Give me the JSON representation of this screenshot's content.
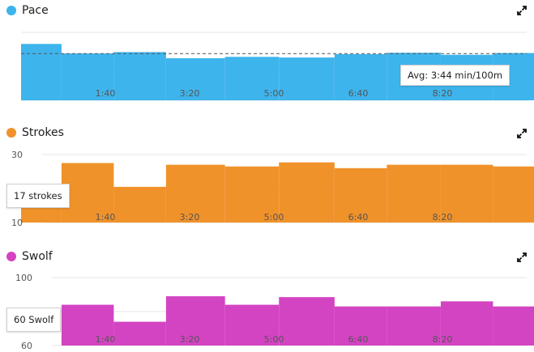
{
  "panels": [
    {
      "id": "pace",
      "title": "Pace",
      "color": "#3eb4ec",
      "callout": "Avg: 3:44 min/100m"
    },
    {
      "id": "strokes",
      "title": "Strokes",
      "color": "#f0922a",
      "callout": "17 strokes"
    },
    {
      "id": "swolf",
      "title": "Swolf",
      "color": "#d344c2",
      "callout": "60 Swolf"
    }
  ],
  "chart_data": [
    {
      "type": "bar",
      "series_name": "Pace",
      "x_tick_labels": [
        "1:40",
        "3:20",
        "5:00",
        "6:40",
        "8:20"
      ],
      "x_tick_values": [
        100,
        200,
        300,
        400,
        500
      ],
      "x_range": [
        0,
        600
      ],
      "segments": [
        {
          "start": 0,
          "end": 48,
          "value": 4.15
        },
        {
          "start": 48,
          "end": 110,
          "value": 3.45
        },
        {
          "start": 110,
          "end": 172,
          "value": 3.55
        },
        {
          "start": 172,
          "end": 242,
          "value": 3.1
        },
        {
          "start": 242,
          "end": 306,
          "value": 3.2
        },
        {
          "start": 306,
          "end": 372,
          "value": 3.15
        },
        {
          "start": 372,
          "end": 434,
          "value": 3.4
        },
        {
          "start": 434,
          "end": 498,
          "value": 3.5
        },
        {
          "start": 498,
          "end": 560,
          "value": 3.35
        },
        {
          "start": 560,
          "end": 624,
          "value": 3.48
        }
      ],
      "average": 3.44,
      "y_range": [
        0,
        5
      ],
      "y_tick_labels": []
    },
    {
      "type": "bar",
      "series_name": "Strokes",
      "x_tick_labels": [
        "1:40",
        "3:20",
        "5:00",
        "6:40",
        "8:20"
      ],
      "x_tick_values": [
        100,
        200,
        300,
        400,
        500
      ],
      "x_range": [
        0,
        600
      ],
      "segments": [
        {
          "start": 0,
          "end": 48,
          "value": 17
        },
        {
          "start": 48,
          "end": 110,
          "value": 27.5
        },
        {
          "start": 110,
          "end": 172,
          "value": 20.5
        },
        {
          "start": 172,
          "end": 242,
          "value": 27
        },
        {
          "start": 242,
          "end": 306,
          "value": 26.5
        },
        {
          "start": 306,
          "end": 372,
          "value": 27.7
        },
        {
          "start": 372,
          "end": 434,
          "value": 26
        },
        {
          "start": 434,
          "end": 498,
          "value": 27
        },
        {
          "start": 498,
          "end": 560,
          "value": 27
        },
        {
          "start": 560,
          "end": 624,
          "value": 26.5
        }
      ],
      "y_range": [
        10,
        30
      ],
      "y_tick_labels": [
        "10",
        "30"
      ],
      "y_tick_values": [
        10,
        30
      ]
    },
    {
      "type": "bar",
      "series_name": "Swolf",
      "x_tick_labels": [
        "1:40",
        "3:20",
        "5:00",
        "6:40",
        "8:20"
      ],
      "x_tick_values": [
        100,
        200,
        300,
        400,
        500
      ],
      "x_range": [
        0,
        600
      ],
      "segments": [
        {
          "start": 0,
          "end": 48,
          "value": 60
        },
        {
          "start": 48,
          "end": 110,
          "value": 84
        },
        {
          "start": 110,
          "end": 172,
          "value": 74
        },
        {
          "start": 172,
          "end": 242,
          "value": 89
        },
        {
          "start": 242,
          "end": 306,
          "value": 84
        },
        {
          "start": 306,
          "end": 372,
          "value": 88.5
        },
        {
          "start": 372,
          "end": 434,
          "value": 83
        },
        {
          "start": 434,
          "end": 498,
          "value": 83
        },
        {
          "start": 498,
          "end": 560,
          "value": 86
        },
        {
          "start": 560,
          "end": 624,
          "value": 83
        }
      ],
      "y_range": [
        60,
        100
      ],
      "y_tick_labels": [
        "100",
        "60"
      ],
      "y_tick_values": [
        100,
        60
      ]
    }
  ]
}
